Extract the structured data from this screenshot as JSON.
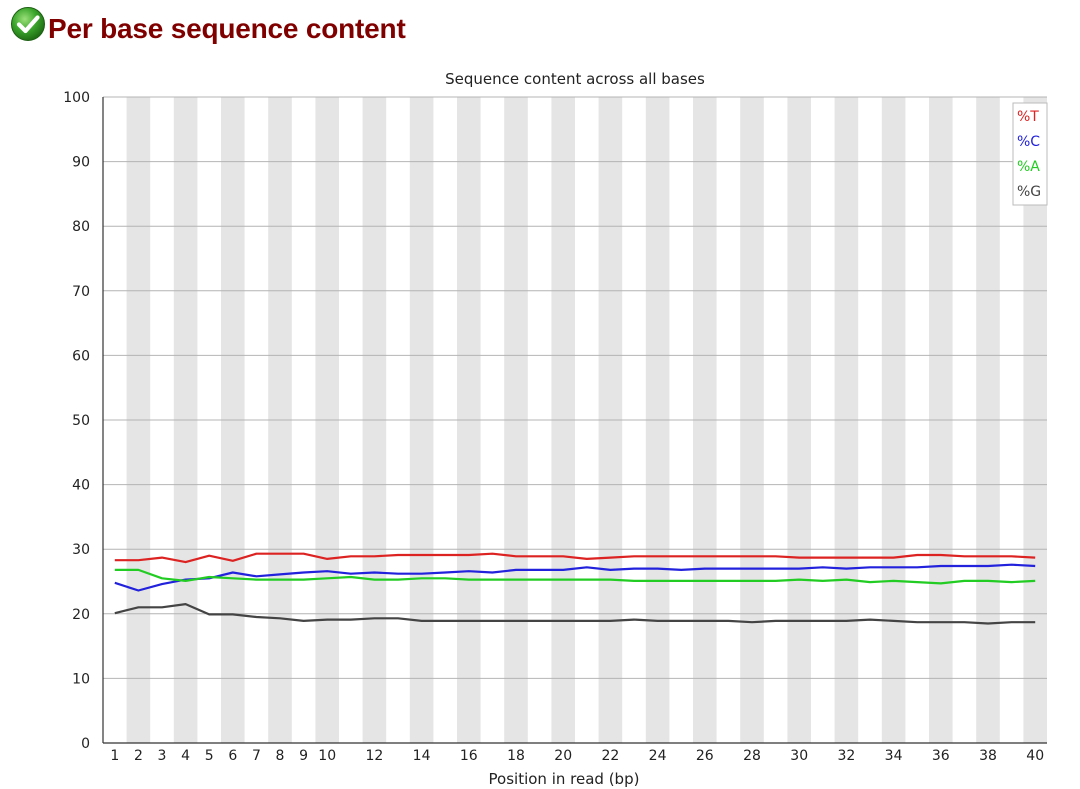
{
  "page": {
    "title": "Per base sequence content",
    "status_icon": "check-icon"
  },
  "chart_data": {
    "type": "line",
    "title": "Sequence content across all bases",
    "xlabel": "Position in read (bp)",
    "ylabel": "",
    "ylim": [
      0,
      100
    ],
    "yticks": [
      0,
      10,
      20,
      30,
      40,
      50,
      60,
      70,
      80,
      90,
      100
    ],
    "x": [
      1,
      2,
      3,
      4,
      5,
      6,
      7,
      8,
      9,
      10,
      11,
      12,
      13,
      14,
      15,
      16,
      17,
      18,
      19,
      20,
      21,
      22,
      23,
      24,
      25,
      26,
      27,
      28,
      29,
      30,
      31,
      32,
      33,
      34,
      35,
      36,
      37,
      38,
      39,
      40
    ],
    "xtick_labels": [
      "1",
      "2",
      "3",
      "4",
      "5",
      "6",
      "7",
      "8",
      "9",
      "10",
      "",
      "12",
      "",
      "14",
      "",
      "16",
      "",
      "18",
      "",
      "20",
      "",
      "22",
      "",
      "24",
      "",
      "26",
      "",
      "28",
      "",
      "30",
      "",
      "32",
      "",
      "34",
      "",
      "36",
      "",
      "38",
      "",
      "40"
    ],
    "grid": true,
    "legend_position": "top-right",
    "series": [
      {
        "name": "%T",
        "color": "#dd2222",
        "values": [
          28.3,
          28.3,
          28.7,
          28.0,
          29.0,
          28.2,
          29.3,
          29.3,
          29.3,
          28.5,
          28.9,
          28.9,
          29.1,
          29.1,
          29.1,
          29.1,
          29.3,
          28.9,
          28.9,
          28.9,
          28.5,
          28.7,
          28.9,
          28.9,
          28.9,
          28.9,
          28.9,
          28.9,
          28.9,
          28.7,
          28.7,
          28.7,
          28.7,
          28.7,
          29.1,
          29.1,
          28.9,
          28.9,
          28.9,
          28.7
        ]
      },
      {
        "name": "%C",
        "color": "#2222dd",
        "values": [
          24.8,
          23.6,
          24.6,
          25.3,
          25.5,
          26.4,
          25.8,
          26.1,
          26.4,
          26.6,
          26.2,
          26.4,
          26.2,
          26.2,
          26.4,
          26.6,
          26.4,
          26.8,
          26.8,
          26.8,
          27.2,
          26.8,
          27.0,
          27.0,
          26.8,
          27.0,
          27.0,
          27.0,
          27.0,
          27.0,
          27.2,
          27.0,
          27.2,
          27.2,
          27.2,
          27.4,
          27.4,
          27.4,
          27.6,
          27.4
        ]
      },
      {
        "name": "%A",
        "color": "#22cc22",
        "values": [
          26.8,
          26.8,
          25.5,
          25.1,
          25.7,
          25.5,
          25.3,
          25.3,
          25.3,
          25.5,
          25.7,
          25.3,
          25.3,
          25.5,
          25.5,
          25.3,
          25.3,
          25.3,
          25.3,
          25.3,
          25.3,
          25.3,
          25.1,
          25.1,
          25.1,
          25.1,
          25.1,
          25.1,
          25.1,
          25.3,
          25.1,
          25.3,
          24.9,
          25.1,
          24.9,
          24.7,
          25.1,
          25.1,
          24.9,
          25.1
        ]
      },
      {
        "name": "%G",
        "color": "#444444",
        "values": [
          20.1,
          21.0,
          21.0,
          21.5,
          19.9,
          19.9,
          19.5,
          19.3,
          18.9,
          19.1,
          19.1,
          19.3,
          19.3,
          18.9,
          18.9,
          18.9,
          18.9,
          18.9,
          18.9,
          18.9,
          18.9,
          18.9,
          19.1,
          18.9,
          18.9,
          18.9,
          18.9,
          18.7,
          18.9,
          18.9,
          18.9,
          18.9,
          19.1,
          18.9,
          18.7,
          18.7,
          18.7,
          18.5,
          18.7,
          18.7
        ]
      }
    ]
  }
}
